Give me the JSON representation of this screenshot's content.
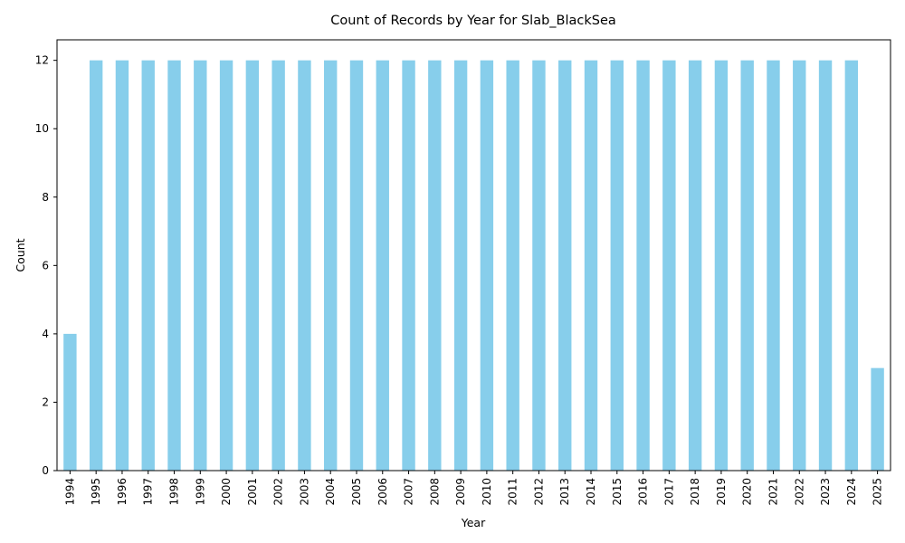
{
  "chart_data": {
    "type": "bar",
    "title": "Count of Records by Year for Slab_BlackSea",
    "xlabel": "Year",
    "ylabel": "Count",
    "categories": [
      "1994",
      "1995",
      "1996",
      "1997",
      "1998",
      "1999",
      "2000",
      "2001",
      "2002",
      "2003",
      "2004",
      "2005",
      "2006",
      "2007",
      "2008",
      "2009",
      "2010",
      "2011",
      "2012",
      "2013",
      "2014",
      "2015",
      "2016",
      "2017",
      "2018",
      "2019",
      "2020",
      "2021",
      "2022",
      "2023",
      "2024",
      "2025"
    ],
    "values": [
      4,
      12,
      12,
      12,
      12,
      12,
      12,
      12,
      12,
      12,
      12,
      12,
      12,
      12,
      12,
      12,
      12,
      12,
      12,
      12,
      12,
      12,
      12,
      12,
      12,
      12,
      12,
      12,
      12,
      12,
      12,
      3
    ],
    "ylim": [
      0,
      12.6
    ],
    "yticks": [
      0,
      2,
      4,
      6,
      8,
      10,
      12
    ],
    "bar_color": "#87CEEB",
    "grid": false,
    "legend": "none"
  }
}
